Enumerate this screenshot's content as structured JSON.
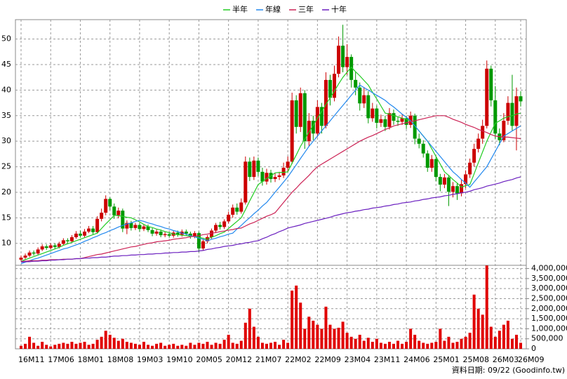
{
  "chart_data": {
    "type": "candlestick",
    "categories": [
      "16M11",
      null,
      null,
      null,
      null,
      null,
      null,
      "17M06",
      null,
      null,
      null,
      null,
      null,
      null,
      "18M01",
      null,
      null,
      null,
      null,
      null,
      null,
      "18M08",
      null,
      null,
      null,
      null,
      null,
      null,
      "19M03",
      null,
      null,
      null,
      null,
      null,
      null,
      "19M10",
      null,
      null,
      null,
      null,
      null,
      null,
      "20M05",
      null,
      null,
      null,
      null,
      null,
      null,
      "20M12",
      null,
      null,
      null,
      null,
      null,
      null,
      "21M07",
      null,
      null,
      null,
      null,
      null,
      null,
      "22M02",
      null,
      null,
      null,
      null,
      null,
      null,
      "22M09",
      null,
      null,
      null,
      null,
      null,
      null,
      "23M04",
      null,
      null,
      null,
      null,
      null,
      null,
      "23M11",
      null,
      null,
      null,
      null,
      null,
      null,
      "24M06",
      null,
      null,
      null,
      null,
      null,
      null,
      "25M01",
      null,
      null,
      null,
      null,
      null,
      null,
      "25M08",
      null,
      null,
      null,
      null,
      null,
      null,
      "26M03",
      null,
      null,
      null,
      null,
      null,
      "26M09"
    ],
    "open": [
      6.8,
      7.2,
      7.6,
      8.2,
      8.0,
      8.8,
      9.4,
      9.1,
      9.6,
      9.3,
      9.9,
      10.6,
      10.4,
      11.2,
      11.9,
      11.5,
      12.3,
      12.9,
      12.2,
      14.8,
      16.0,
      18.7,
      17.2,
      15.5,
      16.4,
      12.9,
      14.0,
      13.0,
      13.6,
      12.8,
      13.3,
      12.6,
      11.9,
      12.3,
      11.6,
      11.8,
      11.5,
      12.1,
      11.7,
      12.3,
      11.9,
      11.4,
      12.0,
      9.0,
      10.4,
      11.2,
      12.5,
      13.6,
      13.2,
      14.3,
      15.6,
      17.0,
      16.2,
      18.0,
      26.0,
      23.0,
      26.2,
      24.0,
      22.1,
      23.8,
      22.6,
      23.0,
      23.3,
      24.8,
      26.0,
      38.0,
      32.8,
      39.4,
      30.0,
      34.0,
      31.5,
      36.7,
      33.0,
      42.0,
      38.5,
      43.2,
      48.7,
      44.5,
      46.5,
      42.0,
      40.5,
      37.4,
      39.0,
      34.5,
      36.4,
      33.6,
      34.3,
      32.8,
      35.5,
      34.0,
      33.8,
      34.5,
      33.2,
      35.0,
      30.5,
      29.5,
      27.6,
      24.8,
      26.5,
      23.0,
      21.5,
      22.9,
      20.1,
      21.2,
      19.8,
      21.6,
      23.5,
      25.8,
      28.5,
      30.5,
      33.0,
      44.2,
      38.0,
      31.5,
      30.2,
      34.0,
      37.5,
      33.0,
      38.8
    ],
    "high": [
      7.6,
      8.0,
      8.6,
      8.6,
      9.2,
      9.8,
      9.8,
      10.0,
      10.0,
      10.3,
      11.0,
      11.0,
      11.6,
      12.4,
      12.5,
      12.8,
      13.4,
      13.4,
      15.3,
      16.8,
      19.4,
      19.0,
      17.8,
      17.0,
      16.8,
      14.5,
      14.4,
      14.0,
      14.0,
      13.7,
      13.7,
      13.0,
      12.7,
      12.7,
      12.2,
      12.2,
      12.5,
      12.5,
      12.7,
      12.7,
      12.3,
      12.4,
      12.3,
      10.8,
      11.6,
      12.9,
      14.0,
      14.2,
      14.7,
      16.2,
      17.6,
      17.8,
      18.8,
      27.0,
      26.8,
      27.0,
      26.8,
      24.8,
      24.6,
      24.4,
      23.8,
      24.0,
      25.8,
      27.0,
      39.5,
      39.0,
      40.5,
      40.0,
      35.5,
      35.0,
      38.0,
      37.5,
      43.5,
      43.0,
      44.8,
      50.5,
      52.8,
      49.0,
      47.0,
      43.5,
      41.5,
      40.5,
      39.8,
      37.5,
      37.0,
      35.2,
      35.0,
      36.5,
      36.2,
      34.8,
      35.3,
      35.0,
      35.8,
      35.4,
      31.5,
      30.2,
      28.2,
      27.3,
      27.0,
      23.6,
      23.6,
      23.4,
      22.0,
      21.8,
      22.4,
      24.3,
      26.6,
      29.5,
      31.5,
      34.2,
      45.8,
      44.8,
      40.8,
      32.5,
      35.5,
      38.8,
      43.0,
      40.5,
      39.8
    ],
    "low": [
      6.5,
      6.9,
      7.3,
      7.6,
      7.7,
      8.5,
      8.7,
      8.8,
      8.9,
      9.0,
      9.6,
      10.0,
      10.1,
      10.9,
      11.1,
      11.2,
      12.0,
      11.8,
      11.9,
      14.3,
      15.5,
      16.5,
      14.8,
      14.9,
      12.2,
      11.8,
      12.5,
      12.6,
      12.3,
      12.4,
      12.2,
      11.4,
      11.5,
      11.2,
      11.2,
      11.1,
      11.1,
      11.3,
      11.3,
      11.5,
      10.9,
      11.0,
      8.3,
      8.6,
      10.0,
      10.9,
      12.1,
      12.7,
      12.8,
      13.9,
      15.0,
      15.6,
      15.8,
      17.6,
      22.2,
      22.4,
      23.2,
      21.3,
      21.5,
      21.9,
      22.0,
      22.4,
      22.8,
      24.0,
      25.5,
      31.5,
      31.8,
      28.5,
      29.0,
      30.2,
      30.8,
      31.5,
      32.5,
      37.0,
      37.8,
      42.5,
      43.5,
      43.0,
      40.5,
      39.0,
      36.0,
      36.5,
      33.5,
      33.8,
      32.5,
      32.8,
      32.0,
      32.3,
      33.2,
      33.0,
      33.2,
      32.4,
      32.6,
      29.4,
      28.6,
      26.8,
      24.0,
      24.0,
      22.2,
      20.2,
      20.8,
      17.3,
      19.0,
      18.5,
      19.2,
      20.8,
      22.8,
      25.0,
      27.8,
      29.5,
      32.5,
      36.8,
      30.5,
      29.2,
      29.8,
      33.2,
      32.0,
      28.2,
      36.8
    ],
    "close": [
      7.2,
      7.6,
      8.2,
      8.0,
      8.8,
      9.4,
      9.1,
      9.6,
      9.3,
      9.9,
      10.6,
      10.4,
      11.2,
      11.9,
      11.5,
      12.3,
      12.9,
      12.2,
      14.8,
      16.0,
      18.7,
      17.2,
      15.5,
      16.4,
      12.9,
      14.0,
      13.0,
      13.6,
      12.8,
      13.3,
      12.6,
      11.9,
      12.3,
      11.6,
      11.8,
      11.5,
      12.1,
      11.7,
      12.3,
      11.9,
      11.4,
      12.0,
      9.0,
      10.4,
      11.2,
      12.5,
      13.6,
      13.2,
      14.3,
      15.6,
      17.0,
      16.2,
      18.0,
      26.0,
      23.0,
      26.2,
      24.0,
      22.1,
      23.8,
      22.6,
      23.0,
      23.3,
      24.8,
      26.0,
      38.0,
      32.8,
      39.4,
      30.0,
      34.0,
      31.5,
      36.7,
      33.0,
      42.0,
      38.5,
      43.2,
      48.7,
      44.5,
      46.5,
      42.0,
      40.5,
      37.4,
      39.0,
      34.5,
      36.4,
      33.6,
      34.3,
      32.8,
      35.5,
      34.0,
      33.8,
      34.5,
      33.2,
      35.0,
      30.5,
      29.5,
      27.6,
      24.8,
      26.5,
      23.0,
      21.5,
      22.9,
      20.1,
      21.2,
      19.8,
      21.6,
      23.5,
      25.8,
      28.5,
      30.5,
      33.0,
      44.2,
      38.0,
      31.5,
      30.2,
      34.0,
      37.5,
      33.0,
      38.8,
      37.8
    ],
    "up_color": "#cc0000",
    "down_color": "#009900",
    "series": [
      {
        "name": "半年",
        "color": "#22cc22",
        "values": [
          6.5,
          6.8,
          7.1,
          7.4,
          7.7,
          8.0,
          8.3,
          8.6,
          8.9,
          9.2,
          9.6,
          9.9,
          10.2,
          10.5,
          10.8,
          11.1,
          11.4,
          11.7,
          12.0,
          12.9,
          13.8,
          14.6,
          15.5,
          15.4,
          15.3,
          15.1,
          15.0,
          14.6,
          14.2,
          13.7,
          13.3,
          13.1,
          12.8,
          12.6,
          12.3,
          12.1,
          11.8,
          11.7,
          11.6,
          11.5,
          11.4,
          11.3,
          11.2,
          11.0,
          10.8,
          11.2,
          11.5,
          11.9,
          12.2,
          12.9,
          13.6,
          14.3,
          15.0,
          16.6,
          18.3,
          19.9,
          21.5,
          22.1,
          22.7,
          23.2,
          23.8,
          23.9,
          23.9,
          24.0,
          25.7,
          27.3,
          29.0,
          30.4,
          31.8,
          33.1,
          34.5,
          35.8,
          37.2,
          38.5,
          39.8,
          41.2,
          42.5,
          43.5,
          44.5,
          43.6,
          42.8,
          41.9,
          41.0,
          39.6,
          38.3,
          36.9,
          35.5,
          35.3,
          35.0,
          34.8,
          34.5,
          34.3,
          34.0,
          33.0,
          32.0,
          31.0,
          30.0,
          28.5,
          27.0,
          25.5,
          24.0,
          23.3,
          22.5,
          21.8,
          21.0,
          21.3,
          21.5,
          23.6,
          25.8,
          27.9,
          30.0,
          31.8,
          33.5,
          34.0,
          34.5,
          34.8,
          35.0,
          35.3,
          35.5
        ]
      },
      {
        "name": "年線",
        "color": "#2288ee",
        "values": [
          6.0,
          6.3,
          6.6,
          6.9,
          7.1,
          7.4,
          7.7,
          8.0,
          8.3,
          8.6,
          8.9,
          9.1,
          9.4,
          9.7,
          10.0,
          10.4,
          10.7,
          11.1,
          11.4,
          11.8,
          12.1,
          12.5,
          12.8,
          13.2,
          13.5,
          13.8,
          14.0,
          14.3,
          14.5,
          14.3,
          14.0,
          13.8,
          13.5,
          13.3,
          13.0,
          12.8,
          12.5,
          12.3,
          12.0,
          11.8,
          11.5,
          11.3,
          11.0,
          10.8,
          10.5,
          10.8,
          11.0,
          11.3,
          11.5,
          11.8,
          12.0,
          12.8,
          13.5,
          14.3,
          15.0,
          15.8,
          16.5,
          17.3,
          18.0,
          19.0,
          20.0,
          21.0,
          22.0,
          23.0,
          24.2,
          25.4,
          26.6,
          27.8,
          29.0,
          30.0,
          31.0,
          32.0,
          33.0,
          34.0,
          35.0,
          36.0,
          37.0,
          38.0,
          39.0,
          40.0,
          41.0,
          40.5,
          40.0,
          39.5,
          39.0,
          38.5,
          38.0,
          37.3,
          36.7,
          36.0,
          35.3,
          34.7,
          34.0,
          33.0,
          32.0,
          31.0,
          30.0,
          29.0,
          28.0,
          27.0,
          26.0,
          25.0,
          24.0,
          23.3,
          22.5,
          21.8,
          21.0,
          22.0,
          23.0,
          24.0,
          25.0,
          26.5,
          28.0,
          29.5,
          31.0,
          31.5,
          32.0,
          32.5,
          33.0
        ]
      },
      {
        "name": "三年",
        "color": "#cc2255",
        "values": [
          6.5,
          6.5,
          6.6,
          6.6,
          6.6,
          6.7,
          6.7,
          6.8,
          6.8,
          6.8,
          6.9,
          6.9,
          6.9,
          7.0,
          7.0,
          7.2,
          7.4,
          7.6,
          7.8,
          7.9,
          8.1,
          8.3,
          8.5,
          8.7,
          8.9,
          9.1,
          9.3,
          9.4,
          9.6,
          9.8,
          10.0,
          10.1,
          10.3,
          10.4,
          10.5,
          10.6,
          10.8,
          10.9,
          11.0,
          11.1,
          11.3,
          11.4,
          11.5,
          11.7,
          11.8,
          12.0,
          12.1,
          12.3,
          12.4,
          12.6,
          12.7,
          12.9,
          13.0,
          13.4,
          13.8,
          14.1,
          14.5,
          14.9,
          15.3,
          15.6,
          16.0,
          17.0,
          18.0,
          19.0,
          20.0,
          20.8,
          21.7,
          22.5,
          23.3,
          24.2,
          25.0,
          25.5,
          26.0,
          26.5,
          27.0,
          27.5,
          28.0,
          28.5,
          29.0,
          29.5,
          30.0,
          30.4,
          30.8,
          31.1,
          31.5,
          31.9,
          32.3,
          32.6,
          33.0,
          33.2,
          33.4,
          33.6,
          33.8,
          34.0,
          34.2,
          34.4,
          34.6,
          34.8,
          35.0,
          35.0,
          35.0,
          34.7,
          34.3,
          34.0,
          33.7,
          33.3,
          33.0,
          32.7,
          32.3,
          32.0,
          31.7,
          31.3,
          31.0,
          30.9,
          30.8,
          30.8,
          30.7,
          30.6,
          30.5
        ]
      },
      {
        "name": "十年",
        "color": "#6a1fbf",
        "values": [
          6.3,
          6.4,
          6.4,
          6.5,
          6.5,
          6.6,
          6.6,
          6.7,
          6.7,
          6.8,
          6.8,
          6.9,
          6.9,
          7.0,
          7.0,
          7.1,
          7.1,
          7.2,
          7.2,
          7.3,
          7.3,
          7.4,
          7.5,
          7.5,
          7.6,
          7.6,
          7.7,
          7.7,
          7.8,
          7.8,
          7.9,
          7.9,
          8.0,
          8.0,
          8.1,
          8.1,
          8.2,
          8.2,
          8.3,
          8.3,
          8.4,
          8.4,
          8.5,
          8.6,
          8.8,
          8.9,
          9.1,
          9.2,
          9.4,
          9.5,
          9.6,
          9.8,
          9.9,
          10.1,
          10.2,
          10.4,
          10.5,
          10.9,
          11.2,
          11.6,
          11.9,
          12.3,
          12.6,
          13.0,
          13.2,
          13.4,
          13.6,
          13.9,
          14.1,
          14.3,
          14.5,
          14.7,
          14.9,
          15.1,
          15.4,
          15.6,
          15.8,
          16.0,
          16.1,
          16.3,
          16.4,
          16.6,
          16.7,
          16.9,
          17.0,
          17.1,
          17.3,
          17.4,
          17.6,
          17.7,
          17.9,
          18.0,
          18.1,
          18.3,
          18.4,
          18.6,
          18.7,
          18.9,
          19.0,
          19.1,
          19.3,
          19.4,
          19.6,
          19.7,
          19.9,
          20.0,
          20.2,
          20.5,
          20.7,
          20.9,
          21.2,
          21.4,
          21.6,
          21.8,
          22.1,
          22.3,
          22.5,
          22.8,
          23.0
        ]
      }
    ],
    "ylim": [
      5.7,
      53.8
    ],
    "yticks": [
      10,
      15,
      20,
      25,
      30,
      35,
      40,
      45,
      50
    ],
    "grid": true,
    "legend": "top",
    "volume": {
      "color": "#e00000",
      "ylim": [
        0,
        4160000
      ],
      "yticks": [
        0,
        {
          "value": 500000,
          "label": "500,000"
        },
        {
          "value": 1000000,
          "label": "1,000,000"
        },
        {
          "value": 1500000,
          "label": "1,500,000"
        },
        {
          "value": 2000000,
          "label": "2,000,000"
        },
        {
          "value": 2500000,
          "label": "2,500,000"
        },
        {
          "value": 3000000,
          "label": "3,000,000"
        },
        {
          "value": 3500000,
          "label": "3,500,000"
        },
        {
          "value": 4000000,
          "label": "4,000,000"
        }
      ],
      "values": [
        150000,
        250000,
        600000,
        300000,
        150000,
        350000,
        200000,
        120000,
        200000,
        250000,
        300000,
        250000,
        350000,
        250000,
        300000,
        350000,
        200000,
        250000,
        450000,
        600000,
        900000,
        700000,
        550000,
        400000,
        500000,
        350000,
        300000,
        250000,
        200000,
        350000,
        200000,
        150000,
        250000,
        300000,
        150000,
        200000,
        250000,
        150000,
        200000,
        150000,
        300000,
        200000,
        300000,
        250000,
        350000,
        200000,
        300000,
        250000,
        450000,
        700000,
        300000,
        250000,
        400000,
        1300000,
        2000000,
        1100000,
        600000,
        300000,
        250000,
        300000,
        350000,
        200000,
        450000,
        300000,
        2900000,
        3150000,
        2300000,
        1000000,
        1600000,
        1400000,
        1200000,
        1000000,
        2100000,
        1200000,
        1000000,
        1050000,
        1350000,
        800000,
        600000,
        500000,
        700000,
        400000,
        550000,
        350000,
        500000,
        300000,
        250000,
        350000,
        250000,
        400000,
        250000,
        350000,
        1000000,
        700000,
        400000,
        300000,
        250000,
        300000,
        350000,
        1000000,
        400000,
        600000,
        300000,
        350000,
        500000,
        600000,
        800000,
        2700000,
        2000000,
        1700000,
        4150000,
        1100000,
        600000,
        900000,
        1200000,
        1400000,
        500000,
        700000,
        300000
      ]
    },
    "source": "資料日期: 09/22 (Goodinfo.tw)"
  }
}
